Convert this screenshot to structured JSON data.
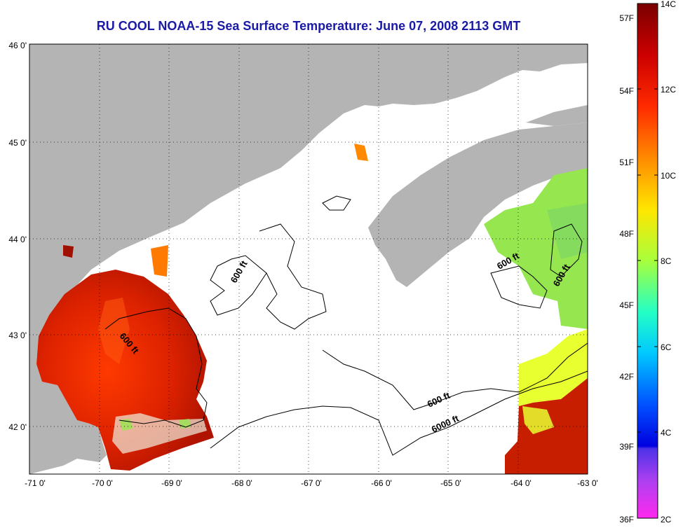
{
  "title": "RU COOL  NOAA-15  Sea Surface Temperature:  June 07, 2008 2113 GMT",
  "lon_labels": [
    "-71 0'",
    "-70 0'",
    "-69 0'",
    "-68 0'",
    "-67 0'",
    "-66 0'",
    "-65 0'",
    "-64 0'",
    "-63 0'"
  ],
  "lat_labels": [
    "46 0'",
    "45 0'",
    "44 0'",
    "43 0'",
    "42 0'"
  ],
  "contour_labels": [
    "600 ft",
    "600 ft",
    "600 ft",
    "600 ft",
    "600 ft",
    "6000 ft"
  ],
  "colorbar_f_labels": [
    "57F",
    "54F",
    "51F",
    "48F",
    "45F",
    "42F",
    "39F",
    "36F"
  ],
  "colorbar_c_labels": [
    "14C",
    "12C",
    "10C",
    "8C",
    "6C",
    "4C",
    "2C"
  ],
  "colors": {
    "land": "#b4b4b4",
    "title": "#1a1aa6",
    "warm": "#c81e00",
    "cool": "#96e650"
  }
}
